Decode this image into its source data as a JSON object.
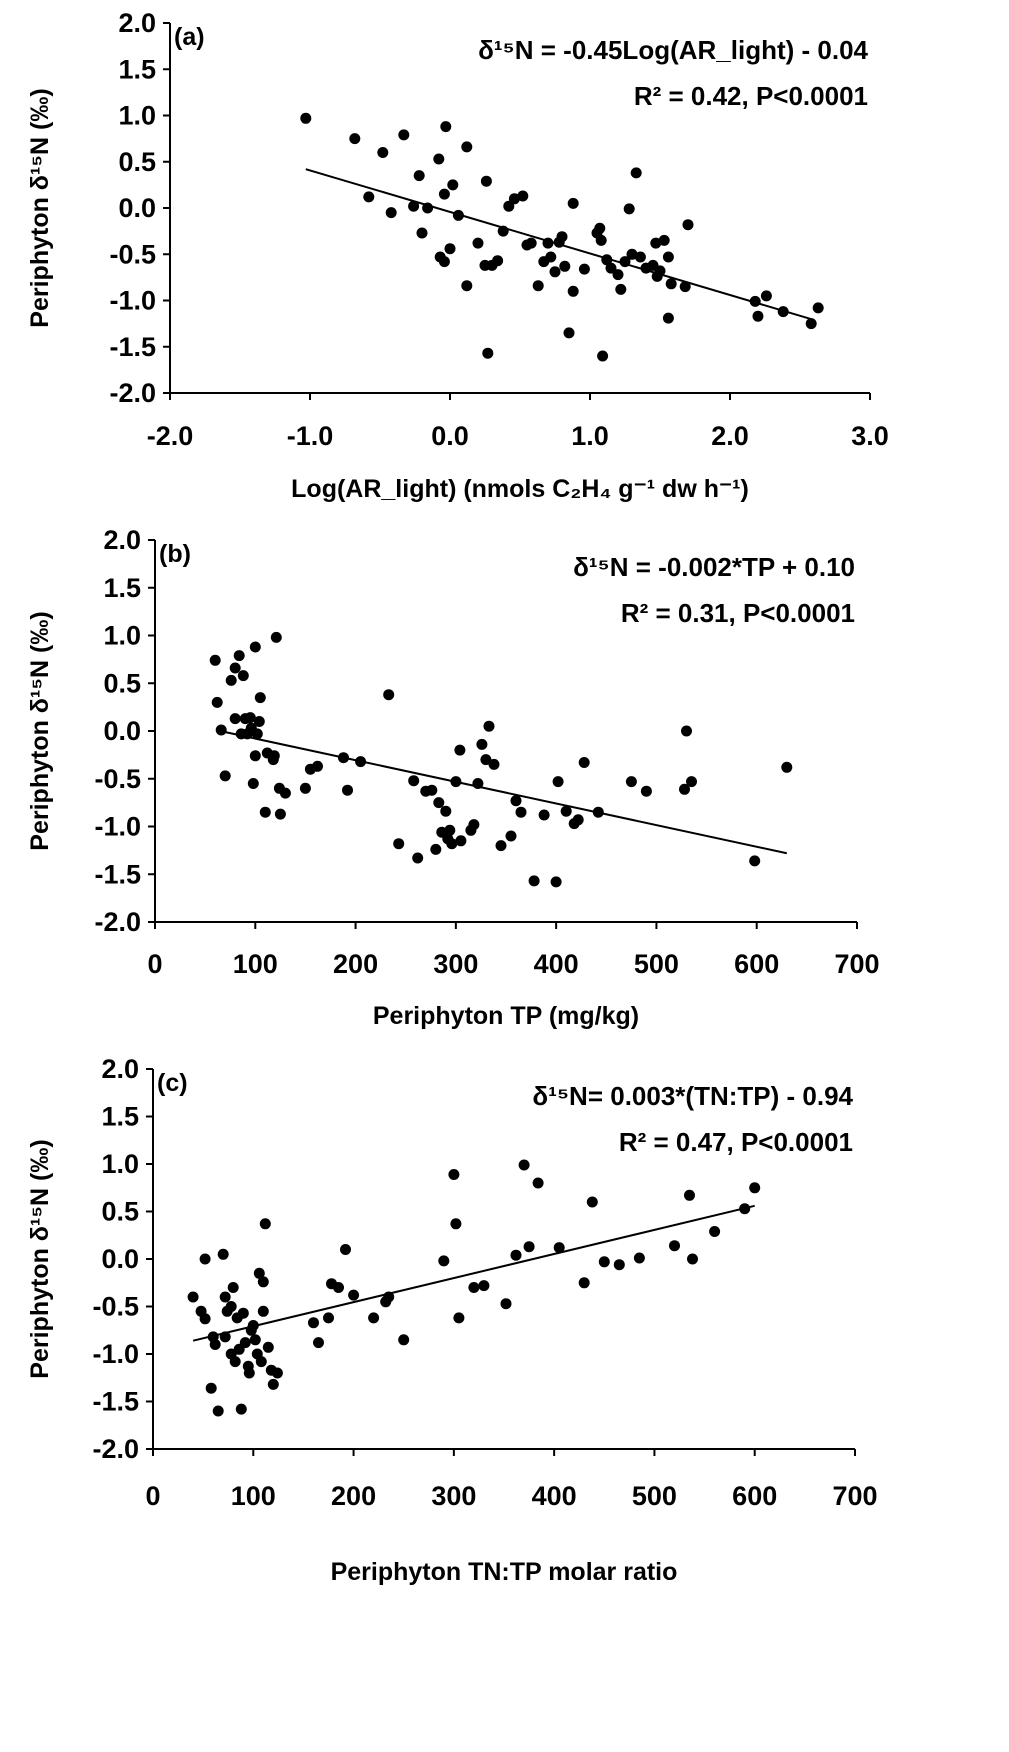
{
  "chart_data": [
    {
      "type": "scatter",
      "panel_label": "(a)",
      "xlabel": "Log(AR_light) (nmols C₂H₄ g⁻¹ dw h⁻¹)",
      "ylabel": "Periphyton δ¹⁵N (‰)",
      "equation": "δ¹⁵N = -0.45Log(AR_light) - 0.04",
      "stats": "R² = 0.42, P<0.0001",
      "xlim": [
        -2.0,
        3.0
      ],
      "ylim": [
        -2.0,
        2.0
      ],
      "xticks": [
        "-2.0",
        "-1.0",
        "0.0",
        "1.0",
        "2.0",
        "3.0"
      ],
      "yticks": [
        "2.0",
        "1.5",
        "1.0",
        "0.5",
        "0.0",
        "-0.5",
        "-1.0",
        "-1.5",
        "-2.0"
      ],
      "grid": false,
      "trendline": {
        "x": [
          -1.03,
          2.6
        ],
        "y": [
          0.42,
          -1.21
        ]
      },
      "points": [
        [
          -1.03,
          0.97
        ],
        [
          -0.68,
          0.75
        ],
        [
          -0.58,
          0.12
        ],
        [
          -0.48,
          0.6
        ],
        [
          -0.42,
          -0.05
        ],
        [
          -0.33,
          0.79
        ],
        [
          -0.26,
          0.02
        ],
        [
          -0.22,
          0.35
        ],
        [
          -0.2,
          -0.27
        ],
        [
          -0.16,
          0.0
        ],
        [
          -0.08,
          0.53
        ],
        [
          -0.07,
          -0.53
        ],
        [
          -0.04,
          -0.58
        ],
        [
          -0.04,
          0.15
        ],
        [
          -0.03,
          0.88
        ],
        [
          0.0,
          -0.44
        ],
        [
          0.02,
          0.25
        ],
        [
          0.06,
          -0.08
        ],
        [
          0.12,
          -0.84
        ],
        [
          0.12,
          0.66
        ],
        [
          0.2,
          -0.38
        ],
        [
          0.25,
          -0.62
        ],
        [
          0.26,
          0.29
        ],
        [
          0.27,
          -1.57
        ],
        [
          0.3,
          -0.62
        ],
        [
          0.34,
          -0.57
        ],
        [
          0.38,
          -0.25
        ],
        [
          0.42,
          0.02
        ],
        [
          0.46,
          0.1
        ],
        [
          0.52,
          0.13
        ],
        [
          0.55,
          -0.4
        ],
        [
          0.58,
          -0.38
        ],
        [
          0.63,
          -0.84
        ],
        [
          0.67,
          -0.58
        ],
        [
          0.7,
          -0.38
        ],
        [
          0.72,
          -0.53
        ],
        [
          0.75,
          -0.69
        ],
        [
          0.78,
          -0.37
        ],
        [
          0.8,
          -0.31
        ],
        [
          0.82,
          -0.63
        ],
        [
          0.85,
          -1.35
        ],
        [
          0.88,
          -0.9
        ],
        [
          0.88,
          0.05
        ],
        [
          0.96,
          -0.66
        ],
        [
          1.05,
          -0.27
        ],
        [
          1.07,
          -0.22
        ],
        [
          1.08,
          -0.35
        ],
        [
          1.09,
          -1.6
        ],
        [
          1.12,
          -0.56
        ],
        [
          1.15,
          -0.65
        ],
        [
          1.2,
          -0.72
        ],
        [
          1.22,
          -0.88
        ],
        [
          1.25,
          -0.58
        ],
        [
          1.28,
          -0.01
        ],
        [
          1.3,
          -0.5
        ],
        [
          1.33,
          0.38
        ],
        [
          1.36,
          -0.53
        ],
        [
          1.4,
          -0.65
        ],
        [
          1.45,
          -0.62
        ],
        [
          1.47,
          -0.38
        ],
        [
          1.48,
          -0.74
        ],
        [
          1.5,
          -0.68
        ],
        [
          1.53,
          -0.35
        ],
        [
          1.56,
          -1.19
        ],
        [
          1.56,
          -0.53
        ],
        [
          1.58,
          -0.82
        ],
        [
          1.68,
          -0.85
        ],
        [
          1.7,
          -0.18
        ],
        [
          2.18,
          -1.01
        ],
        [
          2.2,
          -1.17
        ],
        [
          2.26,
          -0.95
        ],
        [
          2.38,
          -1.12
        ],
        [
          2.58,
          -1.25
        ],
        [
          2.63,
          -1.08
        ]
      ]
    },
    {
      "type": "scatter",
      "panel_label": "(b)",
      "xlabel": "Periphyton TP (mg/kg)",
      "ylabel": "Periphyton δ¹⁵N (‰)",
      "equation": "δ¹⁵N = -0.002*TP + 0.10",
      "stats": "R² = 0.31, P<0.0001",
      "xlim": [
        0,
        700
      ],
      "ylim": [
        -2.0,
        2.0
      ],
      "xticks": [
        "0",
        "100",
        "200",
        "300",
        "400",
        "500",
        "600",
        "700"
      ],
      "yticks": [
        "2.0",
        "1.5",
        "1.0",
        "0.5",
        "0.0",
        "-0.5",
        "-1.0",
        "-1.5",
        "-2.0"
      ],
      "grid": false,
      "trendline": {
        "x": [
          65,
          630
        ],
        "y": [
          0.0,
          -1.28
        ]
      },
      "points": [
        [
          60,
          0.74
        ],
        [
          62,
          0.3
        ],
        [
          66,
          0.01
        ],
        [
          70,
          -0.47
        ],
        [
          76,
          0.53
        ],
        [
          80,
          0.66
        ],
        [
          80,
          0.13
        ],
        [
          84,
          0.79
        ],
        [
          86,
          -0.03
        ],
        [
          88,
          0.58
        ],
        [
          90,
          0.13
        ],
        [
          92,
          -0.03
        ],
        [
          95,
          0.14
        ],
        [
          96,
          0.03
        ],
        [
          98,
          -0.55
        ],
        [
          100,
          -0.26
        ],
        [
          100,
          0.88
        ],
        [
          102,
          -0.03
        ],
        [
          104,
          0.1
        ],
        [
          105,
          0.35
        ],
        [
          110,
          -0.85
        ],
        [
          112,
          -0.23
        ],
        [
          118,
          -0.3
        ],
        [
          119,
          -0.26
        ],
        [
          121,
          0.98
        ],
        [
          124,
          -0.6
        ],
        [
          125,
          -0.87
        ],
        [
          130,
          -0.65
        ],
        [
          150,
          -0.6
        ],
        [
          155,
          -0.4
        ],
        [
          162,
          -0.37
        ],
        [
          188,
          -0.28
        ],
        [
          192,
          -0.62
        ],
        [
          205,
          -0.32
        ],
        [
          233,
          0.38
        ],
        [
          243,
          -1.18
        ],
        [
          258,
          -0.52
        ],
        [
          262,
          -1.33
        ],
        [
          270,
          -0.63
        ],
        [
          276,
          -0.62
        ],
        [
          280,
          -1.24
        ],
        [
          283,
          -0.75
        ],
        [
          286,
          -1.06
        ],
        [
          290,
          -0.84
        ],
        [
          292,
          -1.13
        ],
        [
          294,
          -1.04
        ],
        [
          296,
          -1.18
        ],
        [
          300,
          -0.53
        ],
        [
          304,
          -0.2
        ],
        [
          305,
          -1.15
        ],
        [
          315,
          -1.04
        ],
        [
          318,
          -0.98
        ],
        [
          322,
          -0.55
        ],
        [
          326,
          -0.14
        ],
        [
          330,
          -0.3
        ],
        [
          333,
          0.05
        ],
        [
          338,
          -0.35
        ],
        [
          345,
          -1.2
        ],
        [
          355,
          -1.1
        ],
        [
          360,
          -0.73
        ],
        [
          365,
          -0.85
        ],
        [
          378,
          -1.57
        ],
        [
          388,
          -0.88
        ],
        [
          400,
          -1.58
        ],
        [
          402,
          -0.53
        ],
        [
          410,
          -0.84
        ],
        [
          418,
          -0.97
        ],
        [
          422,
          -0.93
        ],
        [
          428,
          -0.33
        ],
        [
          442,
          -0.85
        ],
        [
          475,
          -0.53
        ],
        [
          490,
          -0.63
        ],
        [
          528,
          -0.61
        ],
        [
          530,
          0.0
        ],
        [
          535,
          -0.53
        ],
        [
          598,
          -1.36
        ],
        [
          630,
          -0.38
        ]
      ]
    },
    {
      "type": "scatter",
      "panel_label": "(c)",
      "xlabel": "Periphyton TN:TP molar ratio",
      "ylabel": "Periphyton δ¹⁵N (‰)",
      "equation": "δ¹⁵N= 0.003*(TN:TP) - 0.94",
      "stats": "R² = 0.47, P<0.0001",
      "xlim": [
        0,
        700
      ],
      "ylim": [
        -2.0,
        2.0
      ],
      "xticks": [
        "0",
        "100",
        "200",
        "300",
        "400",
        "500",
        "600",
        "700"
      ],
      "yticks": [
        "2.0",
        "1.5",
        "1.0",
        "0.5",
        "0.0",
        "-0.5",
        "-1.0",
        "-1.5",
        "-2.0"
      ],
      "grid": false,
      "trendline": {
        "x": [
          40,
          600
        ],
        "y": [
          -0.86,
          0.56
        ]
      },
      "points": [
        [
          40,
          -0.4
        ],
        [
          48,
          -0.55
        ],
        [
          52,
          -0.63
        ],
        [
          52,
          0.0
        ],
        [
          58,
          -1.36
        ],
        [
          60,
          -0.82
        ],
        [
          62,
          -0.9
        ],
        [
          65,
          -1.6
        ],
        [
          70,
          0.05
        ],
        [
          72,
          -0.82
        ],
        [
          72,
          -0.4
        ],
        [
          74,
          -0.55
        ],
        [
          78,
          -1.0
        ],
        [
          78,
          -0.5
        ],
        [
          80,
          -0.3
        ],
        [
          82,
          -1.08
        ],
        [
          84,
          -0.62
        ],
        [
          86,
          -0.95
        ],
        [
          88,
          -1.58
        ],
        [
          90,
          -0.57
        ],
        [
          92,
          -0.88
        ],
        [
          95,
          -1.13
        ],
        [
          96,
          -1.2
        ],
        [
          98,
          -0.75
        ],
        [
          100,
          -0.7
        ],
        [
          102,
          -0.85
        ],
        [
          104,
          -1.0
        ],
        [
          106,
          -0.15
        ],
        [
          108,
          -1.08
        ],
        [
          110,
          -0.55
        ],
        [
          110,
          -0.24
        ],
        [
          112,
          0.37
        ],
        [
          115,
          -0.93
        ],
        [
          118,
          -1.17
        ],
        [
          120,
          -1.32
        ],
        [
          124,
          -1.2
        ],
        [
          160,
          -0.67
        ],
        [
          165,
          -0.88
        ],
        [
          175,
          -0.62
        ],
        [
          178,
          -0.26
        ],
        [
          185,
          -0.3
        ],
        [
          192,
          0.1
        ],
        [
          200,
          -0.38
        ],
        [
          220,
          -0.62
        ],
        [
          232,
          -0.45
        ],
        [
          235,
          -0.4
        ],
        [
          250,
          -0.85
        ],
        [
          290,
          -0.02
        ],
        [
          300,
          0.89
        ],
        [
          302,
          0.37
        ],
        [
          305,
          -0.62
        ],
        [
          320,
          -0.3
        ],
        [
          330,
          -0.28
        ],
        [
          352,
          -0.47
        ],
        [
          362,
          0.04
        ],
        [
          370,
          0.99
        ],
        [
          375,
          0.13
        ],
        [
          384,
          0.8
        ],
        [
          405,
          0.12
        ],
        [
          430,
          -0.25
        ],
        [
          438,
          0.6
        ],
        [
          450,
          -0.03
        ],
        [
          465,
          -0.06
        ],
        [
          485,
          0.01
        ],
        [
          520,
          0.14
        ],
        [
          535,
          0.67
        ],
        [
          538,
          0.0
        ],
        [
          560,
          0.29
        ],
        [
          590,
          0.53
        ],
        [
          600,
          0.75
        ]
      ]
    }
  ]
}
